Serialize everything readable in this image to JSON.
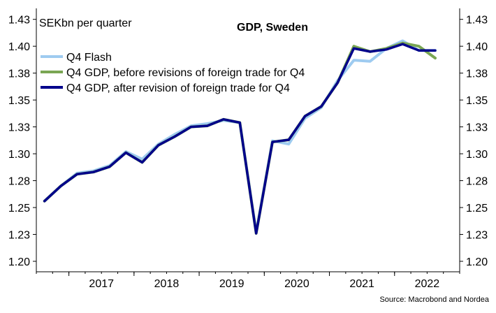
{
  "chart_data": {
    "type": "line",
    "title": "GDP, Sweden",
    "unit_label": "SEKbn per quarter",
    "source": "Source: Macrobond and Nordea",
    "ylim": [
      1.2,
      1.43
    ],
    "yticks": [
      "1.20",
      "1.23",
      "1.25",
      "1.28",
      "1.30",
      "1.33",
      "1.35",
      "1.38",
      "1.40",
      "1.43"
    ],
    "ytick_values": [
      1.2,
      1.225,
      1.25,
      1.275,
      1.3,
      1.325,
      1.35,
      1.375,
      1.4,
      1.425
    ],
    "xlim": [
      2016.5,
      2023.0
    ],
    "x_categories": [
      "2017",
      "2018",
      "2019",
      "2020",
      "2021",
      "2022"
    ],
    "x_category_centers": [
      2017.5,
      2018.5,
      2019.5,
      2020.5,
      2021.5,
      2022.5
    ],
    "x_boundaries": [
      2017.0,
      2018.0,
      2019.0,
      2020.0,
      2021.0,
      2022.0
    ],
    "legend_placement": "top-left",
    "grid": false,
    "series": [
      {
        "name": "Q4 Flash",
        "color": "#9ecbf0",
        "width": 4,
        "x": [
          2016.625,
          2016.875,
          2017.125,
          2017.375,
          2017.625,
          2017.875,
          2018.125,
          2018.375,
          2018.625,
          2018.875,
          2019.125,
          2019.375,
          2019.625,
          2019.875,
          2020.125,
          2020.375,
          2020.625,
          2020.875,
          2021.125,
          2021.375,
          2021.625,
          2021.875,
          2022.125,
          2022.375,
          2022.625
        ],
        "values": [
          1.256,
          1.27,
          1.282,
          1.284,
          1.289,
          1.302,
          1.295,
          1.309,
          1.318,
          1.326,
          1.328,
          1.331,
          1.329,
          1.227,
          1.312,
          1.309,
          1.333,
          1.343,
          1.368,
          1.387,
          1.386,
          1.398,
          1.405,
          1.396,
          1.396
        ]
      },
      {
        "name": "Q4 GDP, before revisions of foreign trade for Q4",
        "color": "#7aa653",
        "width": 4,
        "x": [
          2016.625,
          2016.875,
          2017.125,
          2017.375,
          2017.625,
          2017.875,
          2018.125,
          2018.375,
          2018.625,
          2018.875,
          2019.125,
          2019.375,
          2019.625,
          2019.875,
          2020.125,
          2020.375,
          2020.625,
          2020.875,
          2021.125,
          2021.375,
          2021.625,
          2021.875,
          2022.125,
          2022.375,
          2022.625
        ],
        "values": [
          1.256,
          1.27,
          1.281,
          1.283,
          1.288,
          1.301,
          1.292,
          1.308,
          1.316,
          1.325,
          1.326,
          1.332,
          1.329,
          1.226,
          1.311,
          1.313,
          1.335,
          1.344,
          1.366,
          1.4,
          1.395,
          1.398,
          1.403,
          1.4,
          1.389
        ]
      },
      {
        "name": "Q4 GDP, after revision of foreign trade for Q4",
        "color": "#00008b",
        "width": 3.5,
        "x": [
          2016.625,
          2016.875,
          2017.125,
          2017.375,
          2017.625,
          2017.875,
          2018.125,
          2018.375,
          2018.625,
          2018.875,
          2019.125,
          2019.375,
          2019.625,
          2019.875,
          2020.125,
          2020.375,
          2020.625,
          2020.875,
          2021.125,
          2021.375,
          2021.625,
          2021.875,
          2022.125,
          2022.375,
          2022.625
        ],
        "values": [
          1.256,
          1.27,
          1.281,
          1.283,
          1.288,
          1.301,
          1.292,
          1.308,
          1.316,
          1.325,
          1.326,
          1.332,
          1.329,
          1.226,
          1.311,
          1.313,
          1.335,
          1.344,
          1.366,
          1.398,
          1.395,
          1.397,
          1.402,
          1.396,
          1.396
        ]
      }
    ]
  }
}
